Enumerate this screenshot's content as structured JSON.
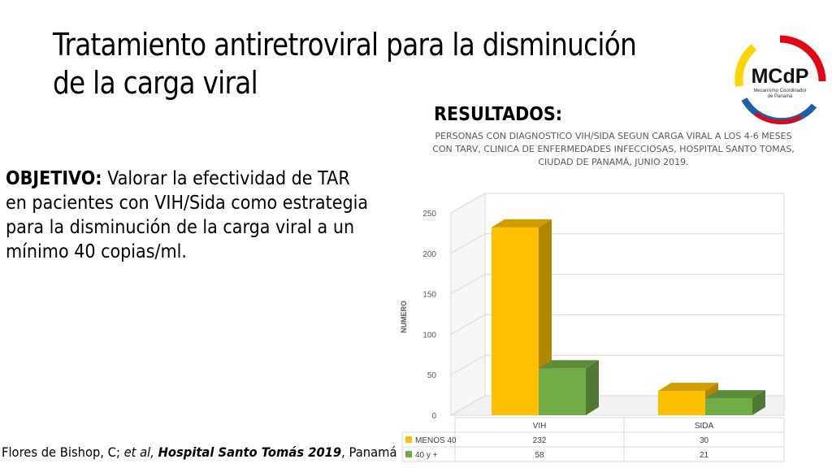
{
  "slide": {
    "title_line1": "Tratamiento antiretroviral para la disminución",
    "title_line2": "de la carga viral",
    "results_heading": "RESULTADOS:",
    "objective_label": "OBJETIVO:",
    "objective_text": " Valorar la efectividad de TAR en pacientes con VIH/Sida como estrategia para la disminución de la carga viral a un mínimo 40 copias/ml.",
    "citation": {
      "author": "Flores de Bishop, C; ",
      "etal": "et al,",
      "source": "Hospital Santo Tomás  2019",
      "place": ", Panamá"
    },
    "logo": {
      "text": "MCdP",
      "subtitle_line1": "Mecanismo Coordinador",
      "subtitle_line2": "de Panamá",
      "colors": [
        "#e30613",
        "#ffd500",
        "#1d5fa8"
      ]
    }
  },
  "chart_data": {
    "type": "bar",
    "title_lines": [
      "PERSONAS CON DIAGNOSTICO VIH/SIDA SEGUN  CARGA VIRAL A LOS 4-6 MESES",
      "CON TARV, CLINICA DE ENFERMEDADES INFECCIOSAS, HOSPITAL SANTO TOMAS,",
      "CIUDAD DE PANAMÁ, JUNIO 2019."
    ],
    "ylabel": "NUMERO",
    "ylim": [
      0,
      250
    ],
    "yticks": [
      0,
      50,
      100,
      150,
      200,
      250
    ],
    "categories": [
      "VIH",
      "SIDA"
    ],
    "series": [
      {
        "name": "MENOS 40",
        "values": [
          232,
          30
        ],
        "color": "#ffc000"
      },
      {
        "name": "40 y +",
        "values": [
          58,
          21
        ],
        "color": "#70ad47"
      }
    ],
    "data_table": true,
    "style": "3d-clustered-column"
  }
}
